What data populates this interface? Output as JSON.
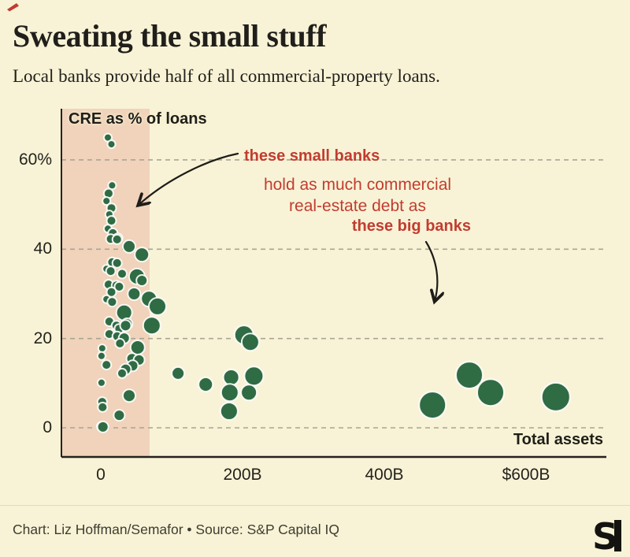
{
  "brand": {
    "mark_color": "#c23c30",
    "logo_letter": "S"
  },
  "header": {
    "title": "Sweating the small stuff",
    "subtitle": "Local banks provide half of all commercial-property loans."
  },
  "axis_labels": {
    "y": "CRE as % of loans",
    "x": "Total assets"
  },
  "annotation_lines": {
    "line1": "these small banks",
    "line2": "hold as much commercial",
    "line3": "real-estate debt as",
    "line4": "these big banks"
  },
  "footer": {
    "credit": "Chart: Liz Hoffman/Semafor • Source: S&P Capital IQ"
  },
  "chart_data": {
    "type": "scatter",
    "title": "Sweating the small stuff",
    "subtitle": "Local banks provide half of all commercial-property loans.",
    "x_axis": {
      "label": "Total assets",
      "unit": "billions of dollars",
      "ticks": [
        {
          "v": 0,
          "label": "0"
        },
        {
          "v": 200,
          "label": "200B"
        },
        {
          "v": 400,
          "label": "400B"
        },
        {
          "v": 600,
          "label": "$600B"
        }
      ],
      "range_b": [
        -56,
        709
      ]
    },
    "y_axis": {
      "label": "CRE as % of loans",
      "ticks": [
        {
          "v": 0,
          "label": "0"
        },
        {
          "v": 20,
          "label": "20"
        },
        {
          "v": 40,
          "label": "40"
        },
        {
          "v": 60,
          "label": "60%"
        }
      ],
      "range_pct": [
        -6.5,
        71.5
      ]
    },
    "grid": "dashed horizontal lines at each y tick",
    "legend": "none",
    "highlight_band": {
      "x_from_b": -56,
      "x_to_b": 69,
      "color": "#f0d3ba",
      "meaning": "cluster of small banks"
    },
    "annotations": [
      {
        "text": "these small banks",
        "style": "bold red",
        "arrow_target": "small-bank cluster in highlight band"
      },
      {
        "text": "hold as much commercial real-estate debt as",
        "style": "red"
      },
      {
        "text": "these big banks",
        "style": "bold red",
        "arrow_target": "large-asset bubbles at right"
      }
    ],
    "point_format": [
      "total_assets_b",
      "cre_pct_of_loans",
      "radius_px"
    ],
    "series": [
      {
        "name": "small banks",
        "points": [
          [
            10,
            65,
            5
          ],
          [
            15,
            63.5,
            5
          ],
          [
            16,
            54.3,
            5
          ],
          [
            11,
            52.5,
            6
          ],
          [
            8,
            50.8,
            5
          ],
          [
            15,
            49.2,
            6
          ],
          [
            12,
            47.8,
            5
          ],
          [
            15,
            46.4,
            6
          ],
          [
            10,
            44.6,
            5
          ],
          [
            17,
            43.6,
            6
          ],
          [
            24,
            42.5,
            6
          ],
          [
            14,
            42.3,
            6
          ],
          [
            23,
            42.2,
            6
          ],
          [
            40,
            40.6,
            8
          ],
          [
            58,
            38.8,
            9
          ],
          [
            16,
            37.1,
            6
          ],
          [
            23,
            36.9,
            6
          ],
          [
            8,
            35.6,
            5
          ],
          [
            14,
            35.1,
            6
          ],
          [
            51,
            33.9,
            10
          ],
          [
            58,
            33,
            7
          ],
          [
            30,
            34.5,
            6
          ],
          [
            11,
            32.1,
            6
          ],
          [
            22,
            31.9,
            6
          ],
          [
            26,
            31.6,
            6
          ],
          [
            15,
            30.4,
            6
          ],
          [
            47,
            30,
            8
          ],
          [
            8,
            28.8,
            5
          ],
          [
            16,
            28.2,
            6
          ],
          [
            68,
            28.9,
            10
          ],
          [
            80,
            27.2,
            11
          ],
          [
            33,
            25.8,
            10
          ],
          [
            12,
            23.8,
            6
          ],
          [
            37,
            23.3,
            7
          ],
          [
            22,
            22.9,
            6
          ],
          [
            26,
            22.2,
            6
          ],
          [
            35,
            22.9,
            7
          ],
          [
            72,
            22.9,
            11
          ],
          [
            12,
            21,
            6
          ],
          [
            23,
            20.5,
            6
          ],
          [
            33,
            20.1,
            7
          ],
          [
            27,
            18.9,
            6
          ],
          [
            52,
            18,
            9
          ],
          [
            2,
            17.8,
            5
          ],
          [
            1,
            16.1,
            5
          ],
          [
            44,
            15.5,
            7
          ],
          [
            54,
            15.2,
            7
          ],
          [
            8,
            14.1,
            6
          ],
          [
            45,
            13.9,
            7
          ],
          [
            35,
            13.1,
            7
          ],
          [
            30,
            12.2,
            6
          ],
          [
            1,
            10.1,
            5
          ],
          [
            40,
            7.2,
            8
          ],
          [
            2,
            5.8,
            6
          ],
          [
            2.5,
            4.6,
            6
          ],
          [
            26,
            2.8,
            7
          ],
          [
            1,
            0.3,
            6
          ],
          [
            3,
            0.2,
            7
          ]
        ]
      },
      {
        "name": "midsize banks",
        "points": [
          [
            202,
            20.8,
            12
          ],
          [
            211,
            19.2,
            11
          ],
          [
            109,
            12.2,
            8
          ],
          [
            148,
            9.7,
            9
          ],
          [
            184,
            11.3,
            10
          ],
          [
            216,
            11.6,
            12
          ],
          [
            182,
            7.9,
            11
          ],
          [
            209,
            7.9,
            10
          ],
          [
            181,
            3.7,
            11
          ]
        ]
      },
      {
        "name": "big banks",
        "points": [
          [
            468,
            5.1,
            17
          ],
          [
            520,
            11.8,
            17
          ],
          [
            550,
            7.9,
            17
          ],
          [
            642,
            6.9,
            18
          ]
        ]
      }
    ],
    "colors": {
      "dot": "#2f6b43",
      "dot_halo": "#ffffff",
      "band": "#f0d3ba",
      "grid": "#a8a694",
      "axis": "#23221d",
      "annotation_red": "#c23c30",
      "background": "#f8f3d6"
    }
  }
}
